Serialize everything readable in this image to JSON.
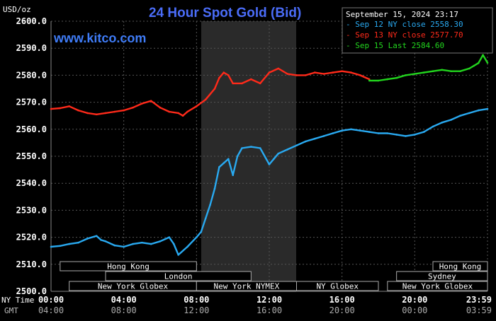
{
  "header": {
    "unit": "USD/oz",
    "title": "24 Hour Spot Gold (Bid)",
    "watermark": "www.kitco.com",
    "timestamp": "September 15, 2024 23:17"
  },
  "time_row_labels": {
    "ny": "NY Time",
    "gmt": "GMT"
  },
  "sessions": {
    "row1": [
      "Hong Kong",
      "Hong Kong"
    ],
    "row2": [
      "London",
      "Sydney"
    ],
    "row3": [
      "New York Globex",
      "New York NYMEX",
      "NY Globex",
      "New York Globex"
    ]
  },
  "colors": {
    "background": "#000000",
    "grid": "#555555",
    "axis_text": "#ffffff",
    "title": "#4a6cf7",
    "watermark": "#3f7cf7",
    "sep12": "#29a9f0",
    "sep13": "#ff2a1a",
    "sep15": "#22d51e",
    "shade": "#2a2a2a"
  },
  "chart_data": {
    "type": "line",
    "title": "24 Hour Spot Gold (Bid)",
    "ylabel": "USD/oz",
    "ylim": [
      2500,
      2600
    ],
    "yticks": [
      "2600.0",
      "2590.0",
      "2580.0",
      "2570.0",
      "2560.0",
      "2550.0",
      "2540.0",
      "2530.0",
      "2520.0",
      "2510.0",
      "2500.0"
    ],
    "xticks_ny": [
      "00:00",
      "04:00",
      "08:00",
      "12:00",
      "16:00",
      "20:00",
      "23:59"
    ],
    "xticks_gmt": [
      "04:00",
      "08:00",
      "12:00",
      "16:00",
      "20:00",
      "00:00",
      "03:59"
    ],
    "grid": true,
    "legend_position": "top-right",
    "series": [
      {
        "name": "Sep 12 NY close",
        "close_label": "2558.30",
        "x": [
          0,
          0.5,
          1,
          1.5,
          2,
          2.5,
          2.75,
          3,
          3.5,
          4,
          4.5,
          5,
          5.5,
          6,
          6.5,
          6.75,
          7,
          7.5,
          8,
          8.25,
          8.5,
          8.75,
          9,
          9.25,
          9.5,
          9.75,
          10,
          10.25,
          10.5,
          11,
          11.5,
          12,
          12.25,
          12.5,
          13,
          13.5,
          14,
          14.5,
          15,
          15.5,
          16,
          16.5,
          17,
          17.5,
          18,
          18.5,
          19,
          19.5,
          20,
          20.5,
          21,
          21.5,
          22,
          22.5,
          23,
          23.5,
          24
        ],
        "values": [
          2516.5,
          2516.8,
          2517.5,
          2518,
          2519.5,
          2520.5,
          2519,
          2518.5,
          2517,
          2516.5,
          2517.5,
          2518,
          2517.5,
          2518.5,
          2520,
          2517.5,
          2513.5,
          2516.5,
          2520,
          2522,
          2527,
          2532,
          2538,
          2546,
          2547.5,
          2549,
          2543,
          2550,
          2553,
          2553.5,
          2553,
          2547,
          2549,
          2551,
          2552.5,
          2554,
          2555.5,
          2556.5,
          2557.5,
          2558.5,
          2559.5,
          2560,
          2559.5,
          2559,
          2558.5,
          2558.5,
          2558,
          2557.5,
          2558,
          2559,
          2561,
          2562.5,
          2563.5,
          2565,
          2566,
          2567,
          2567.5
        ]
      },
      {
        "name": "Sep 13 NY close",
        "close_label": "2577.70",
        "x": [
          0,
          0.5,
          1,
          1.5,
          2,
          2.5,
          3,
          3.5,
          4,
          4.5,
          5,
          5.5,
          6,
          6.5,
          7,
          7.25,
          7.5,
          8,
          8.5,
          9,
          9.25,
          9.5,
          9.75,
          10,
          10.5,
          11,
          11.5,
          12,
          12.5,
          13,
          13.5,
          14,
          14.5,
          15,
          15.5,
          16,
          16.5,
          17,
          17.5
        ],
        "values": [
          2567.5,
          2567.8,
          2568.5,
          2567,
          2566,
          2565.5,
          2566,
          2566.5,
          2567,
          2568,
          2569.5,
          2570.5,
          2568,
          2566.5,
          2566,
          2565,
          2566.5,
          2568.5,
          2571,
          2575,
          2579,
          2581,
          2580,
          2577,
          2577,
          2578.5,
          2577,
          2581,
          2582.5,
          2580.5,
          2580,
          2580,
          2581,
          2580.5,
          2581,
          2581.5,
          2581,
          2580,
          2578.5
        ]
      },
      {
        "name": "Sep 15 Last",
        "close_label": "2584.60",
        "x": [
          17.5,
          18,
          18.5,
          19,
          19.5,
          20,
          20.5,
          21,
          21.5,
          22,
          22.5,
          23,
          23.25,
          23.5,
          23.75,
          24
        ],
        "values": [
          2578,
          2578,
          2578.5,
          2579,
          2580,
          2580.5,
          2581,
          2581.5,
          2582,
          2581.5,
          2581.5,
          2582.5,
          2583.5,
          2584.5,
          2587.5,
          2584.6
        ]
      }
    ]
  }
}
